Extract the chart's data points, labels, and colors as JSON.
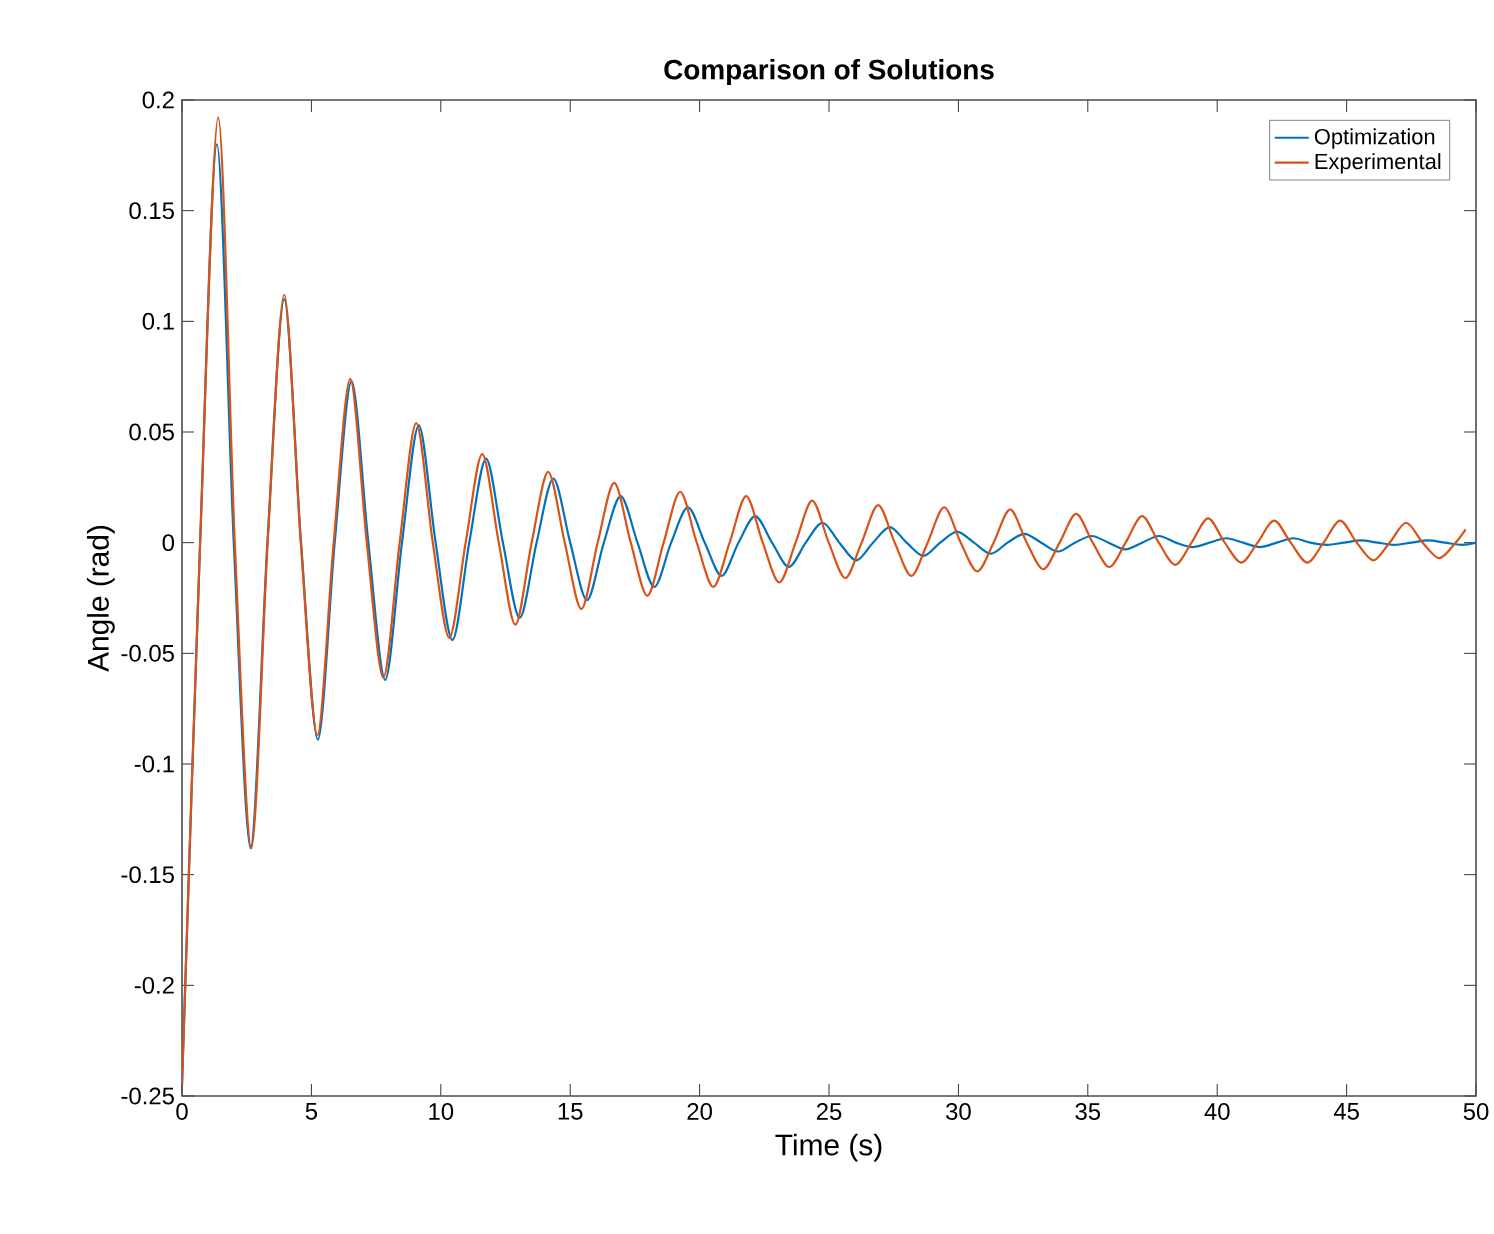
{
  "chart_data": {
    "type": "line",
    "title": "Comparison of Solutions",
    "xlabel": "Time (s)",
    "ylabel": "Angle (rad)",
    "xlim": [
      0,
      50
    ],
    "ylim": [
      -0.25,
      0.2
    ],
    "xticks": [
      0,
      5,
      10,
      15,
      20,
      25,
      30,
      35,
      40,
      45,
      50
    ],
    "yticks": [
      -0.25,
      -0.2,
      -0.15,
      -0.1,
      -0.05,
      0,
      0.05,
      0.1,
      0.15,
      0.2
    ],
    "grid": false,
    "legend": "top right",
    "marker": "none",
    "line_style": "solid",
    "series": [
      {
        "name": "Optimization",
        "color": "#0072bd",
        "x": [
          0,
          0.7,
          1.35,
          2.0,
          2.65,
          3.3,
          3.95,
          4.6,
          5.25,
          5.9,
          6.55,
          7.2,
          7.85,
          8.5,
          9.15,
          9.8,
          10.45,
          11.1,
          11.75,
          12.4,
          13.05,
          13.7,
          14.35,
          15.0,
          15.65,
          16.3,
          16.95,
          17.6,
          18.25,
          18.9,
          19.55,
          20.2,
          20.85,
          21.5,
          22.15,
          22.8,
          23.45,
          24.1,
          24.75,
          25.4,
          26.05,
          26.7,
          27.35,
          28.0,
          28.65,
          29.3,
          29.95,
          30.6,
          31.25,
          31.9,
          32.55,
          33.2,
          33.85,
          34.5,
          35.15,
          35.8,
          36.45,
          37.1,
          37.75,
          38.4,
          39.05,
          39.7,
          40.35,
          41.0,
          41.65,
          42.3,
          42.95,
          43.6,
          44.25,
          44.9,
          45.55,
          46.2,
          46.85,
          47.5,
          48.15,
          48.8,
          49.45,
          50.0
        ],
        "values": [
          -0.245,
          0,
          0.18,
          0,
          -0.138,
          0,
          0.11,
          0,
          -0.089,
          0,
          0.073,
          0,
          -0.062,
          0,
          0.053,
          0,
          -0.044,
          0,
          0.038,
          0,
          -0.034,
          0,
          0.029,
          0,
          -0.026,
          0,
          0.021,
          0,
          -0.02,
          0,
          0.016,
          0,
          -0.015,
          0,
          0.012,
          0,
          -0.011,
          0,
          0.009,
          0,
          -0.008,
          0,
          0.007,
          0,
          -0.006,
          0,
          0.005,
          0,
          -0.005,
          0,
          0.004,
          0,
          -0.004,
          0,
          0.003,
          0,
          -0.003,
          0,
          0.003,
          0,
          -0.002,
          0,
          0.002,
          0,
          -0.002,
          0,
          0.002,
          0,
          -0.001,
          0,
          0.001,
          0,
          -0.001,
          0,
          0.001,
          0,
          -0.001,
          0
        ]
      },
      {
        "name": "Experimental",
        "color": "#d95319",
        "x": [
          0,
          0.7,
          1.4,
          2.04,
          2.68,
          3.31,
          3.95,
          4.59,
          5.23,
          5.86,
          6.5,
          7.14,
          7.78,
          8.41,
          9.05,
          9.69,
          10.33,
          10.96,
          11.6,
          12.24,
          12.88,
          13.51,
          14.15,
          14.79,
          15.43,
          16.06,
          16.7,
          17.34,
          17.98,
          18.61,
          19.25,
          19.89,
          20.53,
          21.16,
          21.8,
          22.44,
          23.08,
          23.71,
          24.35,
          24.99,
          25.63,
          26.26,
          26.9,
          27.54,
          28.18,
          28.81,
          29.45,
          30.09,
          30.73,
          31.36,
          32.0,
          32.64,
          33.28,
          33.91,
          34.55,
          35.19,
          35.83,
          36.46,
          37.1,
          37.74,
          38.38,
          39.01,
          39.65,
          40.29,
          40.93,
          41.56,
          42.2,
          42.84,
          43.48,
          44.11,
          44.75,
          45.39,
          46.03,
          46.66,
          47.3,
          47.94,
          48.58,
          49.21,
          49.6
        ],
        "values": [
          -0.245,
          0,
          0.192,
          0,
          -0.138,
          0,
          0.112,
          0,
          -0.087,
          0,
          0.074,
          0,
          -0.061,
          0,
          0.054,
          0,
          -0.043,
          0,
          0.04,
          0,
          -0.037,
          0,
          0.032,
          0,
          -0.03,
          0,
          0.027,
          0,
          -0.024,
          0,
          0.023,
          0,
          -0.02,
          0,
          0.021,
          0,
          -0.018,
          0,
          0.019,
          0,
          -0.016,
          0,
          0.017,
          0,
          -0.015,
          0,
          0.016,
          0,
          -0.013,
          0,
          0.015,
          0,
          -0.012,
          0,
          0.013,
          0,
          -0.011,
          0,
          0.012,
          0,
          -0.01,
          0,
          0.011,
          0,
          -0.009,
          0,
          0.01,
          0,
          -0.009,
          0,
          0.01,
          0,
          -0.008,
          0,
          0.009,
          0,
          -0.007,
          0,
          0.006
        ]
      }
    ]
  }
}
